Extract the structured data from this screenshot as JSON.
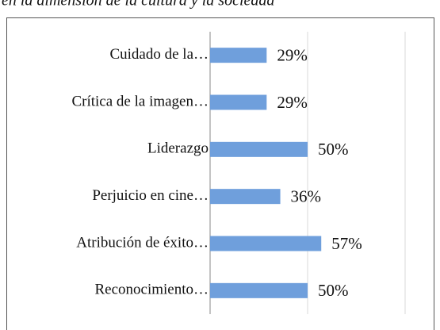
{
  "chart_data": {
    "type": "bar",
    "orientation": "horizontal",
    "title": "en la dimensión de la cultura y la sociedad",
    "categories": [
      "Cuidado de la…",
      "Crítica de la imagen…",
      "Liderazgo",
      "Perjuicio en cine…",
      "Atribución de éxito…",
      "Reconocimiento…"
    ],
    "values": [
      29,
      29,
      50,
      36,
      57,
      50
    ],
    "value_labels": [
      "29%",
      "29%",
      "50%",
      "36%",
      "57%",
      "50%"
    ],
    "color": "#6f9fdc",
    "xlim": [
      0,
      100
    ],
    "xticks": [
      0,
      50,
      100
    ],
    "grid": true
  }
}
